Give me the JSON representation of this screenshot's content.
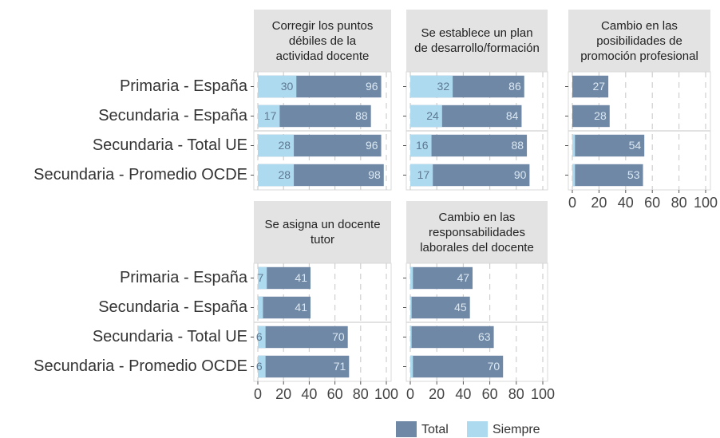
{
  "chart_data": {
    "type": "bar",
    "categories": [
      "Primaria - España",
      "Secundaria - España",
      "Secundaria - Total UE",
      "Secundaria - Promedio OCDE"
    ],
    "series": [
      {
        "name": "Total",
        "color": "#6f88a5"
      },
      {
        "name": "Siempre",
        "color": "#aedaf0"
      }
    ],
    "xlim": [
      0,
      100
    ],
    "xticks": [
      0,
      20,
      40,
      60,
      80,
      100
    ],
    "grid": true,
    "legend": "bottom",
    "panels": [
      {
        "title": "Corregir los puntos\ndébiles de la\nactividad docente",
        "values": [
          [
            96,
            88,
            96,
            98
          ],
          [
            30,
            17,
            28,
            28
          ]
        ]
      },
      {
        "title": "Se establece un plan\nde desarrollo/formación",
        "values": [
          [
            86,
            84,
            88,
            90
          ],
          [
            32,
            24,
            16,
            17
          ]
        ]
      },
      {
        "title": "Cambio en las\nposibilidades de\npromoción profesional",
        "values": [
          [
            27,
            28,
            54,
            53
          ],
          [
            0,
            0,
            2,
            2
          ]
        ]
      },
      {
        "title": "Se asigna un docente\ntutor",
        "values": [
          [
            41,
            41,
            70,
            71
          ],
          [
            7,
            4,
            6,
            6
          ]
        ]
      },
      {
        "title": "Cambio en las\nresponsabilidades\nlaborales del docente",
        "values": [
          [
            47,
            45,
            63,
            70
          ],
          [
            2,
            1,
            1,
            2
          ]
        ]
      }
    ]
  }
}
